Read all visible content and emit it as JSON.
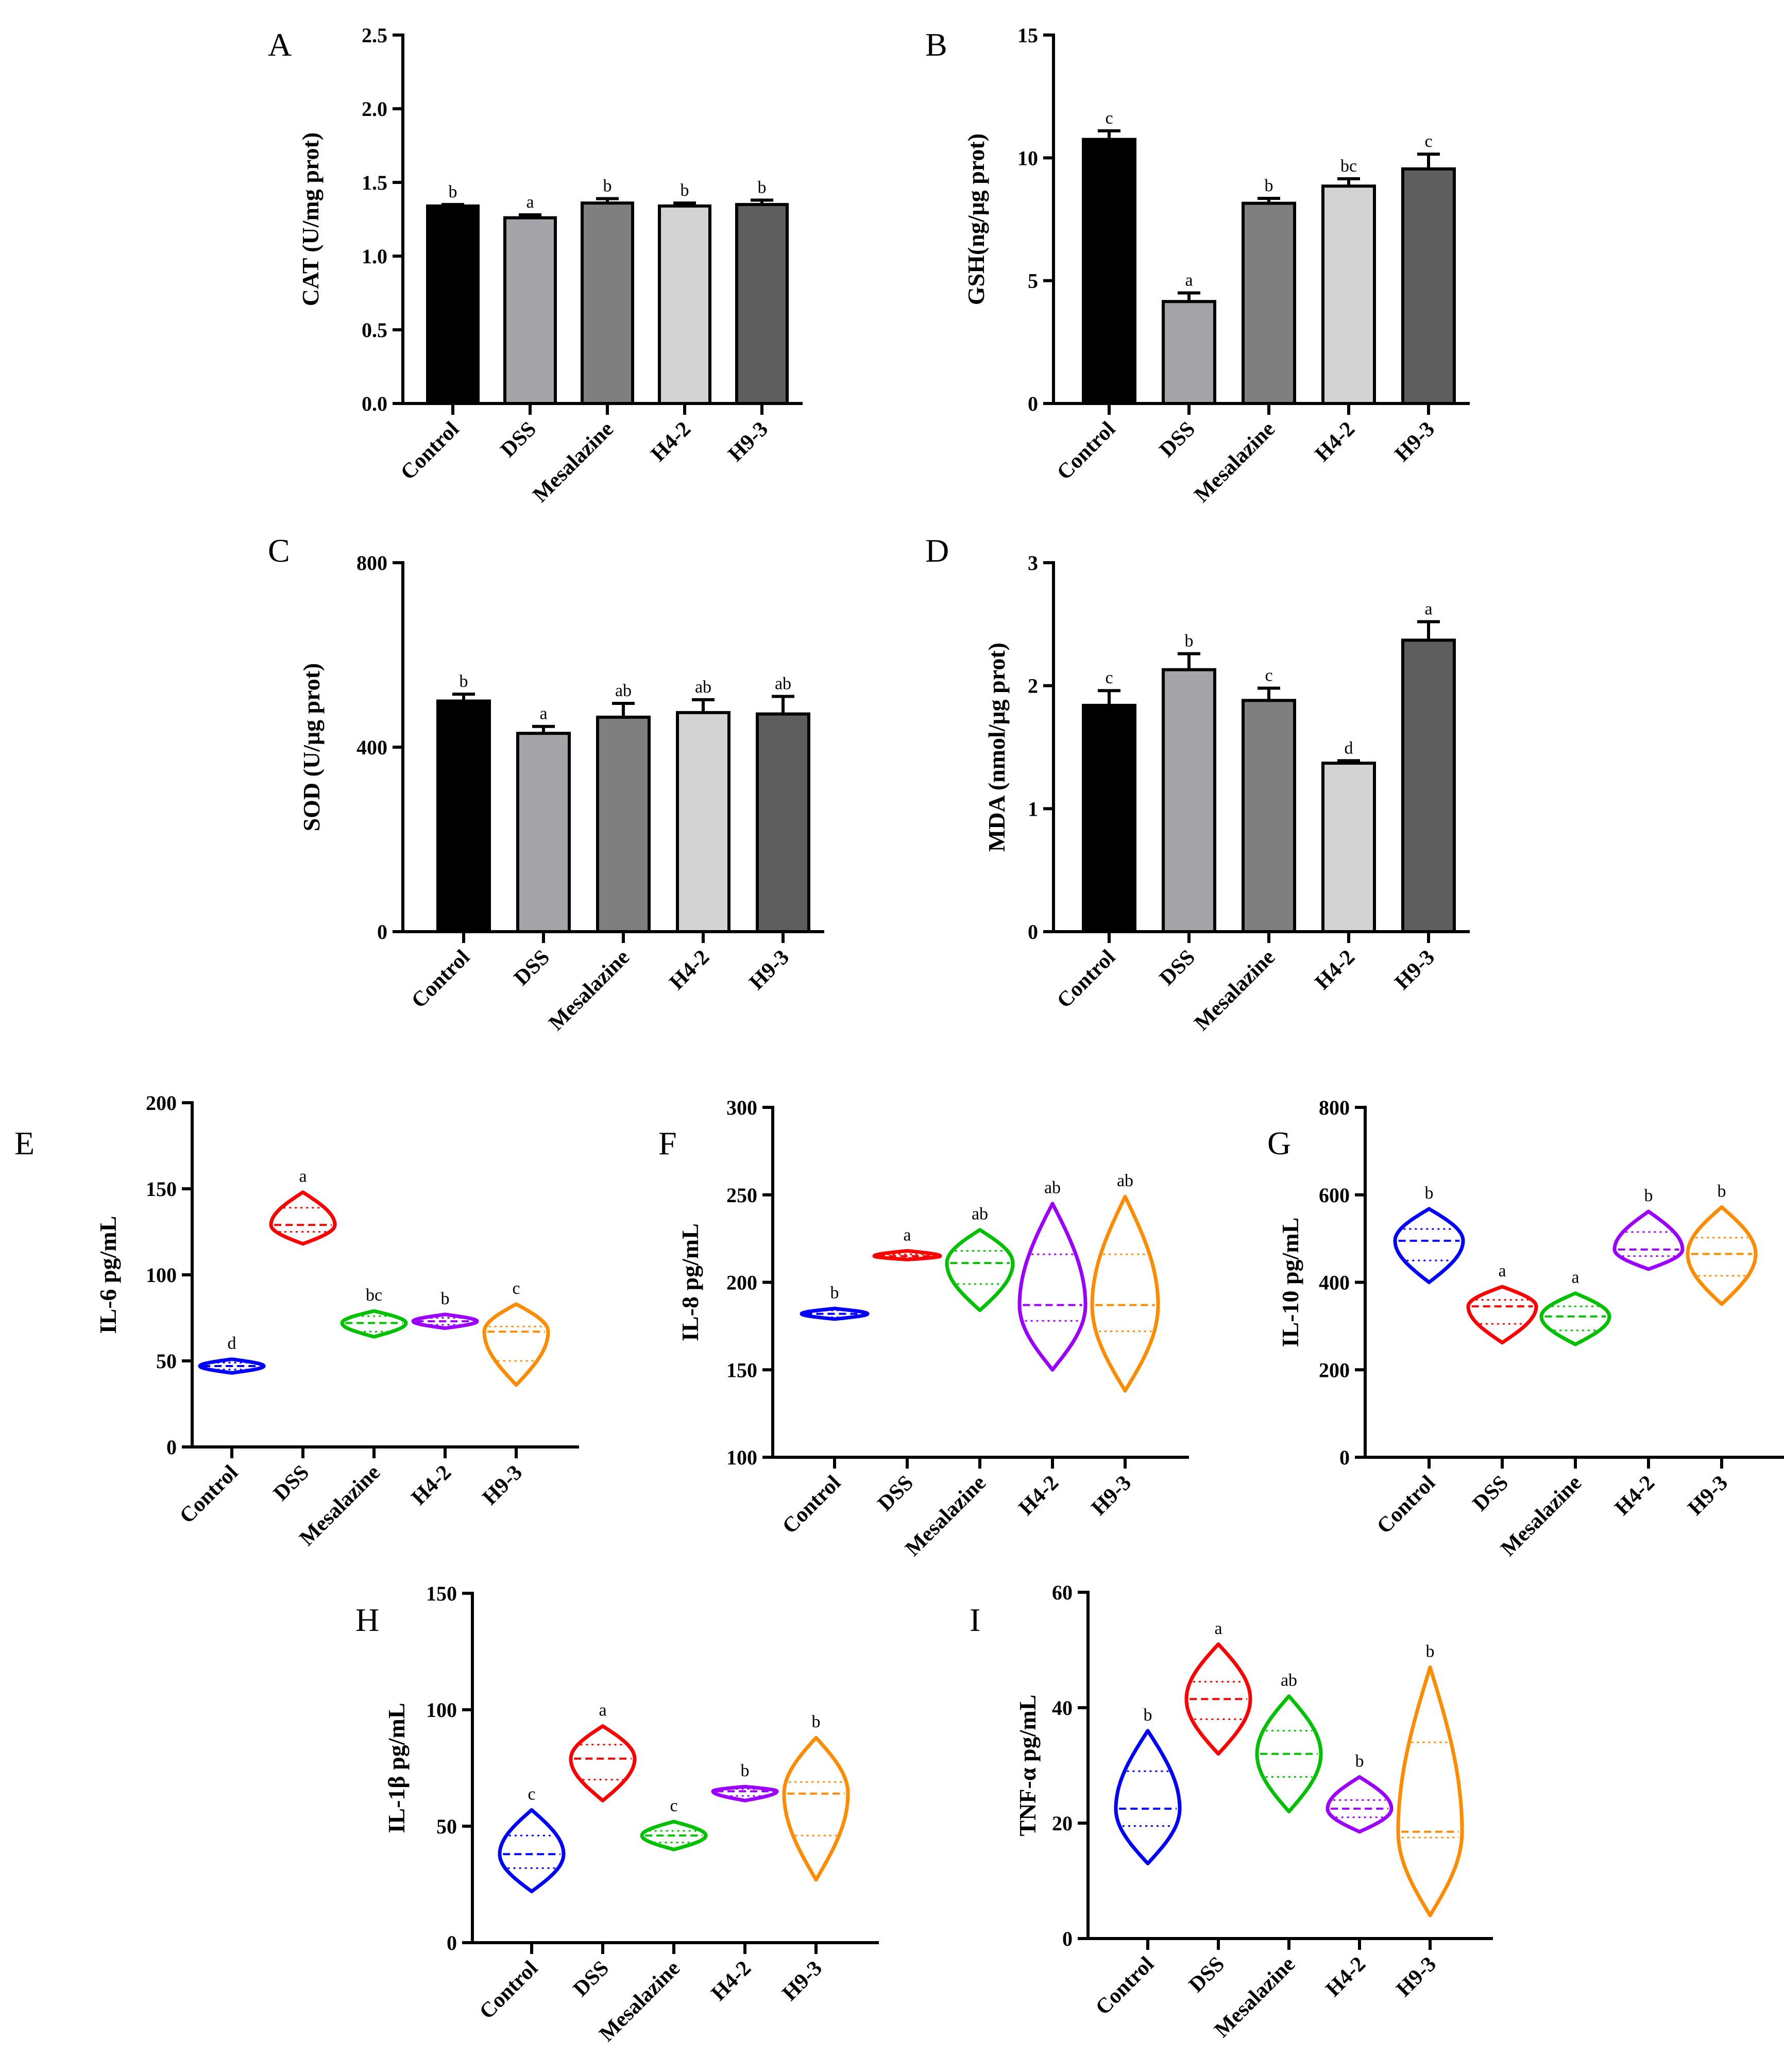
{
  "figure": {
    "category_labels": [
      "Control",
      "DSS",
      "Mesalazine",
      "H4-2",
      "H9-3"
    ]
  },
  "chart_data": [
    {
      "panel": "A",
      "type": "bar",
      "ylabel": "CAT (U/mg prot)",
      "categories": [
        "Control",
        "DSS",
        "Mesalazine",
        "H4-2",
        "H9-3"
      ],
      "values": [
        1.34,
        1.26,
        1.36,
        1.34,
        1.35
      ],
      "errors": [
        0.01,
        0.02,
        0.03,
        0.02,
        0.03
      ],
      "significance": [
        "b",
        "a",
        "b",
        "b",
        "b"
      ],
      "ylim": [
        0,
        2.5
      ],
      "yticks": [
        "0.0",
        "0.5",
        "1.0",
        "1.5",
        "2.0",
        "2.5"
      ],
      "colors": [
        "#000000",
        "#a3a3a8",
        "#7f7f7f",
        "#d3d3d3",
        "#5e5e5e"
      ]
    },
    {
      "panel": "B",
      "type": "bar",
      "ylabel": "GSH(ng/μg prot)",
      "categories": [
        "Control",
        "DSS",
        "Mesalazine",
        "H4-2",
        "H9-3"
      ],
      "values": [
        10.75,
        4.15,
        8.15,
        8.85,
        9.55
      ],
      "errors": [
        0.35,
        0.35,
        0.2,
        0.3,
        0.6
      ],
      "significance": [
        "c",
        "a",
        "b",
        "bc",
        "c"
      ],
      "ylim": [
        0,
        15
      ],
      "yticks": [
        "0",
        "5",
        "10",
        "15"
      ],
      "colors": [
        "#000000",
        "#a3a3a8",
        "#7f7f7f",
        "#d3d3d3",
        "#5e5e5e"
      ]
    },
    {
      "panel": "C",
      "type": "bar",
      "ylabel": "SOD (U/μg prot)",
      "categories": [
        "Control",
        "DSS",
        "Mesalazine",
        "H4-2",
        "H9-3"
      ],
      "values": [
        500,
        430,
        465,
        475,
        472
      ],
      "errors": [
        15,
        15,
        30,
        28,
        38
      ],
      "significance": [
        "b",
        "a",
        "ab",
        "ab",
        "ab"
      ],
      "ylim": [
        0,
        800
      ],
      "yticks": [
        "0",
        "400",
        "800"
      ],
      "colors": [
        "#000000",
        "#a3a3a8",
        "#7f7f7f",
        "#d3d3d3",
        "#5e5e5e"
      ]
    },
    {
      "panel": "D",
      "type": "bar",
      "ylabel": "MDA (nmol/μg prot)",
      "categories": [
        "Control",
        "DSS",
        "Mesalazine",
        "H4-2",
        "H9-3"
      ],
      "values": [
        1.84,
        2.13,
        1.88,
        1.37,
        2.37
      ],
      "errors": [
        0.12,
        0.13,
        0.1,
        0.02,
        0.15
      ],
      "significance": [
        "c",
        "b",
        "c",
        "d",
        "a"
      ],
      "ylim": [
        0,
        3
      ],
      "yticks": [
        "0",
        "1",
        "2",
        "3"
      ],
      "colors": [
        "#000000",
        "#a3a3a8",
        "#7f7f7f",
        "#d3d3d3",
        "#5e5e5e"
      ]
    },
    {
      "panel": "E",
      "type": "violin",
      "ylabel": "IL-6 pg/mL",
      "categories": [
        "Control",
        "DSS",
        "Mesalazine",
        "H4-2",
        "H9-3"
      ],
      "series": [
        {
          "name": "Control",
          "min": 43,
          "max": 51,
          "q1": 45,
          "median": 47,
          "q3": 49
        },
        {
          "name": "DSS",
          "min": 118,
          "max": 148,
          "q1": 125,
          "median": 129,
          "q3": 139
        },
        {
          "name": "Mesalazine",
          "min": 64,
          "max": 79,
          "q1": 67,
          "median": 72,
          "q3": 76
        },
        {
          "name": "H4-2",
          "min": 69,
          "max": 77,
          "q1": 71,
          "median": 73,
          "q3": 75
        },
        {
          "name": "H9-3",
          "min": 36,
          "max": 83,
          "q1": 50,
          "median": 67,
          "q3": 70
        }
      ],
      "significance": [
        "d",
        "a",
        "bc",
        "b",
        "c"
      ],
      "ylim": [
        0,
        200
      ],
      "yticks": [
        "0",
        "50",
        "100",
        "150",
        "200"
      ],
      "colors": [
        "#0000ff",
        "#ff0000",
        "#00c000",
        "#9b00ff",
        "#ff8c00"
      ]
    },
    {
      "panel": "F",
      "type": "violin",
      "ylabel": "IL-8 pg/mL",
      "categories": [
        "Control",
        "DSS",
        "Mesalazine",
        "H4-2",
        "H9-3"
      ],
      "series": [
        {
          "name": "Control",
          "min": 179,
          "max": 185,
          "q1": 180,
          "median": 182,
          "q3": 184
        },
        {
          "name": "DSS",
          "min": 213,
          "max": 218,
          "q1": 214,
          "median": 215,
          "q3": 216
        },
        {
          "name": "Mesalazine",
          "min": 184,
          "max": 230,
          "q1": 199,
          "median": 211,
          "q3": 218
        },
        {
          "name": "H4-2",
          "min": 150,
          "max": 245,
          "q1": 178,
          "median": 187,
          "q3": 216
        },
        {
          "name": "H9-3",
          "min": 138,
          "max": 249,
          "q1": 172,
          "median": 187,
          "q3": 216
        }
      ],
      "significance": [
        "b",
        "a",
        "ab",
        "ab",
        "ab"
      ],
      "ylim": [
        100,
        300
      ],
      "yticks": [
        "100",
        "150",
        "200",
        "250",
        "300"
      ],
      "colors": [
        "#0000ff",
        "#ff0000",
        "#00c000",
        "#9b00ff",
        "#ff8c00"
      ]
    },
    {
      "panel": "G",
      "type": "violin",
      "ylabel": "IL-10 pg/mL",
      "categories": [
        "Control",
        "DSS",
        "Mesalazine",
        "H4-2",
        "H9-3"
      ],
      "series": [
        {
          "name": "Control",
          "min": 400,
          "max": 568,
          "q1": 450,
          "median": 495,
          "q3": 522
        },
        {
          "name": "DSS",
          "min": 262,
          "max": 390,
          "q1": 305,
          "median": 345,
          "q3": 360
        },
        {
          "name": "Mesalazine",
          "min": 258,
          "max": 375,
          "q1": 290,
          "median": 322,
          "q3": 345
        },
        {
          "name": "H4-2",
          "min": 430,
          "max": 562,
          "q1": 460,
          "median": 475,
          "q3": 515
        },
        {
          "name": "H9-3",
          "min": 350,
          "max": 572,
          "q1": 415,
          "median": 465,
          "q3": 502
        }
      ],
      "significance": [
        "b",
        "a",
        "a",
        "b",
        "b"
      ],
      "ylim": [
        0,
        800
      ],
      "yticks": [
        "0",
        "200",
        "400",
        "600",
        "800"
      ],
      "colors": [
        "#0000ff",
        "#ff0000",
        "#00c000",
        "#9b00ff",
        "#ff8c00"
      ]
    },
    {
      "panel": "H",
      "type": "violin",
      "ylabel": "IL-1β pg/mL",
      "categories": [
        "Control",
        "DSS",
        "Mesalazine",
        "H4-2",
        "H9-3"
      ],
      "series": [
        {
          "name": "Control",
          "min": 22,
          "max": 57,
          "q1": 32,
          "median": 38,
          "q3": 46
        },
        {
          "name": "DSS",
          "min": 61,
          "max": 93,
          "q1": 70,
          "median": 79,
          "q3": 85
        },
        {
          "name": "Mesalazine",
          "min": 40,
          "max": 52,
          "q1": 43,
          "median": 46,
          "q3": 48
        },
        {
          "name": "H4-2",
          "min": 61,
          "max": 67,
          "q1": 63,
          "median": 65,
          "q3": 66
        },
        {
          "name": "H9-3",
          "min": 27,
          "max": 88,
          "q1": 46,
          "median": 64,
          "q3": 69
        }
      ],
      "significance": [
        "c",
        "a",
        "c",
        "b",
        "b"
      ],
      "ylim": [
        0,
        150
      ],
      "yticks": [
        "0",
        "50",
        "100",
        "150"
      ],
      "colors": [
        "#0000ff",
        "#ff0000",
        "#00c000",
        "#9b00ff",
        "#ff8c00"
      ]
    },
    {
      "panel": "I",
      "type": "violin",
      "ylabel": "TNF-α pg/mL",
      "categories": [
        "Control",
        "DSS",
        "Mesalazine",
        "H4-2",
        "H9-3"
      ],
      "series": [
        {
          "name": "Control",
          "min": 13,
          "max": 36,
          "q1": 19.5,
          "median": 22.5,
          "q3": 29
        },
        {
          "name": "DSS",
          "min": 32,
          "max": 51,
          "q1": 38,
          "median": 41.5,
          "q3": 44.5
        },
        {
          "name": "Mesalazine",
          "min": 22,
          "max": 42,
          "q1": 28,
          "median": 32,
          "q3": 36
        },
        {
          "name": "H4-2",
          "min": 18.5,
          "max": 28,
          "q1": 21,
          "median": 22.5,
          "q3": 24
        },
        {
          "name": "H9-3",
          "min": 4,
          "max": 47,
          "q1": 17.5,
          "median": 18.5,
          "q3": 34
        }
      ],
      "significance": [
        "b",
        "a",
        "ab",
        "b",
        "b"
      ],
      "ylim": [
        0,
        60
      ],
      "yticks": [
        "0",
        "20",
        "40",
        "60"
      ],
      "colors": [
        "#0000ff",
        "#ff0000",
        "#00c000",
        "#9b00ff",
        "#ff8c00"
      ]
    }
  ]
}
